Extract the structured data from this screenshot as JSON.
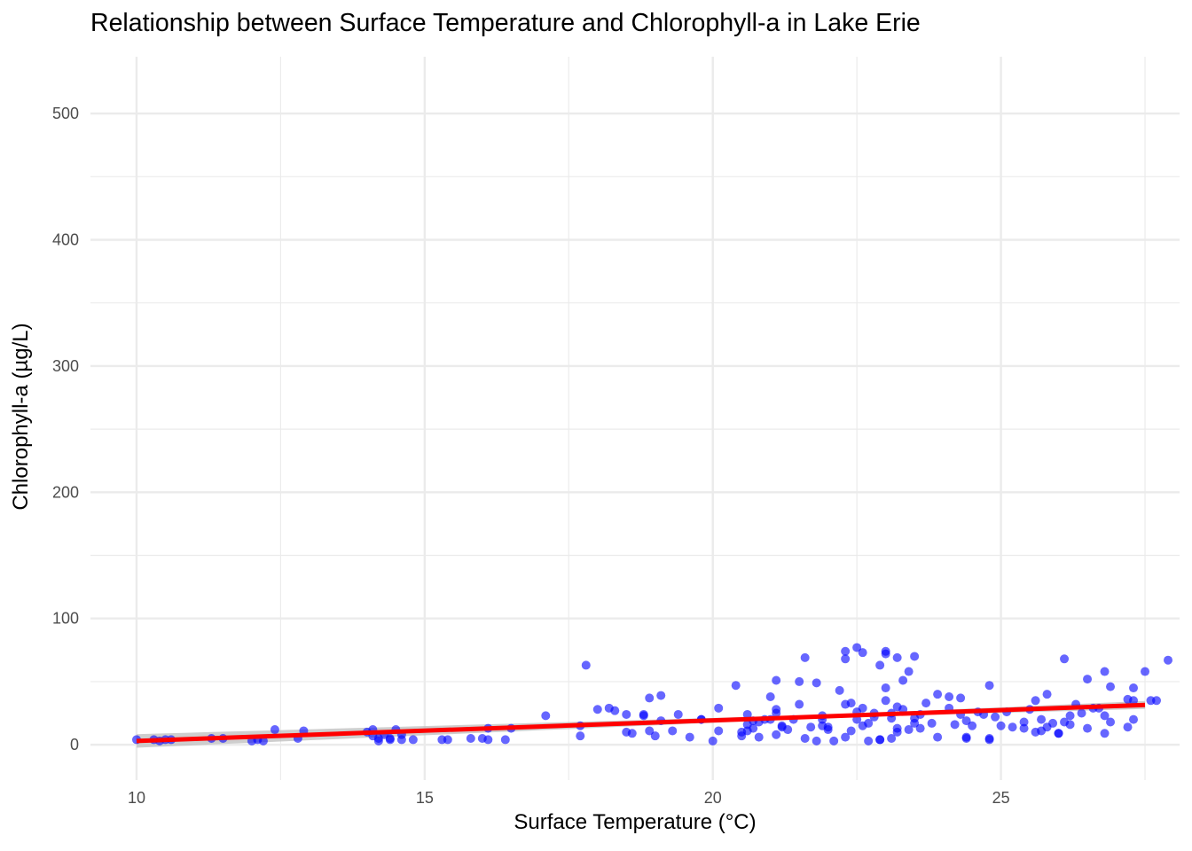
{
  "chart_data": {
    "type": "scatter",
    "title": "Relationship between Surface Temperature and Chlorophyll-a in Lake Erie",
    "xlabel": "Surface Temperature (°C)",
    "ylabel": "Chlorophyll-a (µg/L)",
    "xlim": [
      9.2,
      28.1
    ],
    "ylim": [
      -28,
      545
    ],
    "x_ticks": [
      10,
      15,
      20,
      25
    ],
    "x_tick_labels": [
      "10",
      "15",
      "20",
      "25"
    ],
    "x_minor_ticks": [
      12.5,
      17.5,
      22.5,
      27.5
    ],
    "y_ticks": [
      0,
      100,
      200,
      300,
      400,
      500
    ],
    "y_tick_labels": [
      "0",
      "100",
      "200",
      "300",
      "400",
      "500"
    ],
    "y_minor_ticks": [
      50,
      150,
      250,
      350,
      450
    ],
    "grid": true,
    "legend": "none",
    "colors": {
      "points": "#0000ff",
      "trend": "#ff0000",
      "ribbon": "#bdbdbd",
      "grid": "#ebebeb"
    },
    "trend_line": {
      "method": "linear",
      "x": [
        10.0,
        27.5
      ],
      "y": [
        3.0,
        31.5
      ]
    },
    "points": [
      [
        10.0,
        4
      ],
      [
        10.3,
        4
      ],
      [
        10.4,
        3
      ],
      [
        10.5,
        4
      ],
      [
        10.6,
        4
      ],
      [
        11.3,
        5
      ],
      [
        11.5,
        5
      ],
      [
        12.0,
        3
      ],
      [
        12.1,
        4
      ],
      [
        12.2,
        3
      ],
      [
        12.4,
        12
      ],
      [
        12.8,
        5
      ],
      [
        12.9,
        11
      ],
      [
        14.0,
        10
      ],
      [
        14.1,
        7
      ],
      [
        14.1,
        12
      ],
      [
        14.2,
        5
      ],
      [
        14.2,
        3
      ],
      [
        14.3,
        8
      ],
      [
        14.4,
        5
      ],
      [
        14.4,
        4
      ],
      [
        14.5,
        12
      ],
      [
        14.6,
        8
      ],
      [
        14.6,
        4
      ],
      [
        14.8,
        4
      ],
      [
        15.3,
        4
      ],
      [
        15.4,
        4
      ],
      [
        15.8,
        5
      ],
      [
        16.0,
        5
      ],
      [
        16.1,
        13
      ],
      [
        16.1,
        4
      ],
      [
        16.4,
        4
      ],
      [
        16.5,
        13
      ],
      [
        17.1,
        23
      ],
      [
        17.7,
        15
      ],
      [
        17.7,
        7
      ],
      [
        17.8,
        63
      ],
      [
        18.0,
        28
      ],
      [
        18.2,
        29
      ],
      [
        18.3,
        27
      ],
      [
        18.5,
        24
      ],
      [
        18.5,
        10
      ],
      [
        18.6,
        9
      ],
      [
        18.8,
        24
      ],
      [
        18.8,
        23
      ],
      [
        18.9,
        11
      ],
      [
        18.9,
        37
      ],
      [
        19.0,
        7
      ],
      [
        19.1,
        39
      ],
      [
        19.1,
        19
      ],
      [
        19.3,
        11
      ],
      [
        19.4,
        24
      ],
      [
        19.6,
        6
      ],
      [
        19.8,
        20
      ],
      [
        19.8,
        20
      ],
      [
        20.0,
        3
      ],
      [
        20.1,
        29
      ],
      [
        20.1,
        11
      ],
      [
        20.4,
        47
      ],
      [
        20.5,
        7
      ],
      [
        20.5,
        10
      ],
      [
        20.6,
        24
      ],
      [
        20.6,
        16
      ],
      [
        20.6,
        11
      ],
      [
        20.7,
        19
      ],
      [
        20.7,
        13
      ],
      [
        20.8,
        6
      ],
      [
        20.8,
        18
      ],
      [
        20.9,
        20
      ],
      [
        21.0,
        38
      ],
      [
        21.0,
        20
      ],
      [
        21.1,
        51
      ],
      [
        21.1,
        28
      ],
      [
        21.1,
        25
      ],
      [
        21.1,
        8
      ],
      [
        21.2,
        15
      ],
      [
        21.2,
        14
      ],
      [
        21.3,
        12
      ],
      [
        21.4,
        20
      ],
      [
        21.5,
        50
      ],
      [
        21.5,
        32
      ],
      [
        21.6,
        69
      ],
      [
        21.6,
        5
      ],
      [
        21.7,
        14
      ],
      [
        21.8,
        3
      ],
      [
        21.8,
        49
      ],
      [
        21.9,
        15
      ],
      [
        21.9,
        20
      ],
      [
        21.9,
        23
      ],
      [
        22.0,
        12
      ],
      [
        22.0,
        14
      ],
      [
        22.1,
        3
      ],
      [
        22.2,
        43
      ],
      [
        22.3,
        74
      ],
      [
        22.3,
        68
      ],
      [
        22.3,
        32
      ],
      [
        22.3,
        6
      ],
      [
        22.4,
        11
      ],
      [
        22.4,
        33
      ],
      [
        22.5,
        77
      ],
      [
        22.5,
        26
      ],
      [
        22.5,
        20
      ],
      [
        22.6,
        73
      ],
      [
        22.6,
        15
      ],
      [
        22.6,
        29
      ],
      [
        22.7,
        3
      ],
      [
        22.7,
        17
      ],
      [
        22.8,
        22
      ],
      [
        22.8,
        25
      ],
      [
        22.9,
        4
      ],
      [
        22.9,
        63
      ],
      [
        22.9,
        4
      ],
      [
        23.0,
        74
      ],
      [
        23.0,
        72
      ],
      [
        23.0,
        45
      ],
      [
        23.0,
        35
      ],
      [
        23.1,
        25
      ],
      [
        23.1,
        21
      ],
      [
        23.1,
        5
      ],
      [
        23.2,
        69
      ],
      [
        23.2,
        30
      ],
      [
        23.2,
        10
      ],
      [
        23.2,
        13
      ],
      [
        23.3,
        51
      ],
      [
        23.3,
        28
      ],
      [
        23.4,
        58
      ],
      [
        23.4,
        12
      ],
      [
        23.5,
        17
      ],
      [
        23.5,
        21
      ],
      [
        23.5,
        70
      ],
      [
        23.6,
        24
      ],
      [
        23.6,
        13
      ],
      [
        23.7,
        33
      ],
      [
        23.8,
        17
      ],
      [
        23.9,
        6
      ],
      [
        23.9,
        40
      ],
      [
        24.1,
        38
      ],
      [
        24.1,
        29
      ],
      [
        24.2,
        16
      ],
      [
        24.3,
        24
      ],
      [
        24.3,
        37
      ],
      [
        24.4,
        19
      ],
      [
        24.4,
        6
      ],
      [
        24.4,
        5
      ],
      [
        24.5,
        15
      ],
      [
        24.6,
        26
      ],
      [
        24.7,
        24
      ],
      [
        24.8,
        5
      ],
      [
        24.8,
        4
      ],
      [
        24.8,
        47
      ],
      [
        24.9,
        22
      ],
      [
        25.0,
        15
      ],
      [
        25.1,
        26
      ],
      [
        25.2,
        14
      ],
      [
        25.4,
        18
      ],
      [
        25.4,
        13
      ],
      [
        25.5,
        28
      ],
      [
        25.6,
        35
      ],
      [
        25.6,
        10
      ],
      [
        25.7,
        20
      ],
      [
        25.7,
        11
      ],
      [
        25.8,
        14
      ],
      [
        25.8,
        40
      ],
      [
        25.9,
        17
      ],
      [
        26.0,
        9
      ],
      [
        26.0,
        9
      ],
      [
        26.1,
        68
      ],
      [
        26.1,
        18
      ],
      [
        26.2,
        16
      ],
      [
        26.2,
        23
      ],
      [
        26.3,
        32
      ],
      [
        26.4,
        25
      ],
      [
        26.5,
        52
      ],
      [
        26.5,
        13
      ],
      [
        26.6,
        29
      ],
      [
        26.7,
        29
      ],
      [
        26.8,
        58
      ],
      [
        26.8,
        9
      ],
      [
        26.8,
        23
      ],
      [
        26.9,
        18
      ],
      [
        26.9,
        46
      ],
      [
        27.2,
        14
      ],
      [
        27.2,
        36
      ],
      [
        27.3,
        45
      ],
      [
        27.3,
        35
      ],
      [
        27.3,
        20
      ],
      [
        27.5,
        58
      ],
      [
        27.6,
        35
      ],
      [
        27.7,
        35
      ],
      [
        27.9,
        67
      ]
    ]
  }
}
